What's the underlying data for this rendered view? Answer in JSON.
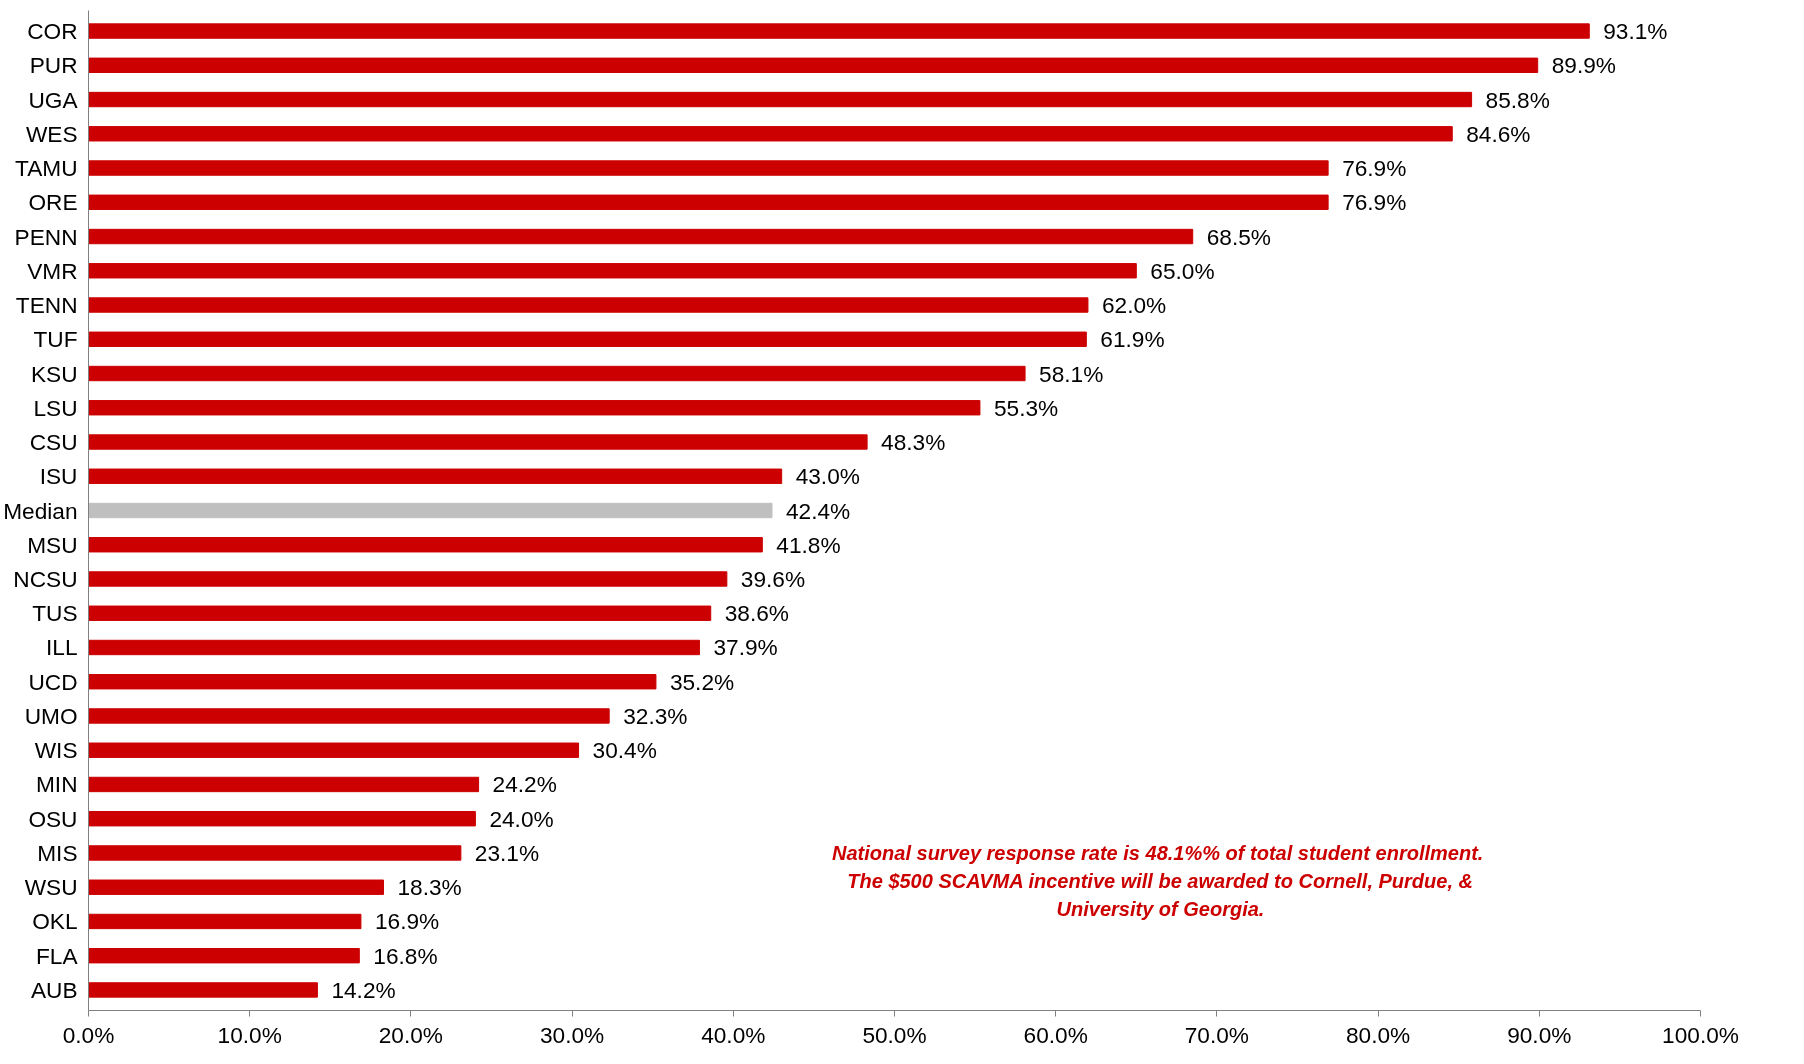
{
  "chart_data": {
    "type": "bar",
    "orientation": "horizontal",
    "categories": [
      "COR",
      "PUR",
      "UGA",
      "WES",
      "TAMU",
      "ORE",
      "PENN",
      "VMR",
      "TENN",
      "TUF",
      "KSU",
      "LSU",
      "CSU",
      "ISU",
      "Median",
      "MSU",
      "NCSU",
      "TUS",
      "ILL",
      "UCD",
      "UMO",
      "WIS",
      "MIN",
      "OSU",
      "MIS",
      "WSU",
      "OKL",
      "FLA",
      "AUB"
    ],
    "values": [
      93.1,
      89.9,
      85.8,
      84.6,
      76.9,
      76.9,
      68.5,
      65.0,
      62.0,
      61.9,
      58.1,
      55.3,
      48.3,
      43.0,
      42.4,
      41.8,
      39.6,
      38.6,
      37.9,
      35.2,
      32.3,
      30.4,
      24.2,
      24.0,
      23.1,
      18.3,
      16.9,
      16.8,
      14.2
    ],
    "colors": [
      "#cc0000",
      "#cc0000",
      "#cc0000",
      "#cc0000",
      "#cc0000",
      "#cc0000",
      "#cc0000",
      "#cc0000",
      "#cc0000",
      "#cc0000",
      "#cc0000",
      "#cc0000",
      "#cc0000",
      "#cc0000",
      "#bfbfbf",
      "#cc0000",
      "#cc0000",
      "#cc0000",
      "#cc0000",
      "#cc0000",
      "#cc0000",
      "#cc0000",
      "#cc0000",
      "#cc0000",
      "#cc0000",
      "#cc0000",
      "#cc0000",
      "#cc0000",
      "#cc0000"
    ],
    "value_labels": [
      "93.1%",
      "89.9%",
      "85.8%",
      "84.6%",
      "76.9%",
      "76.9%",
      "68.5%",
      "65.0%",
      "62.0%",
      "61.9%",
      "58.1%",
      "55.3%",
      "48.3%",
      "43.0%",
      "42.4%",
      "41.8%",
      "39.6%",
      "38.6%",
      "37.9%",
      "35.2%",
      "32.3%",
      "30.4%",
      "24.2%",
      "24.0%",
      "23.1%",
      "18.3%",
      "16.9%",
      "16.8%",
      "14.2%"
    ],
    "xlim": [
      0,
      100
    ],
    "xticks": [
      {
        "value": 0,
        "label": "0.0%"
      },
      {
        "value": 10,
        "label": "10.0%"
      },
      {
        "value": 20,
        "label": "20.0%"
      },
      {
        "value": 30,
        "label": "30.0%"
      },
      {
        "value": 40,
        "label": "40.0%"
      },
      {
        "value": 50,
        "label": "50.0%"
      },
      {
        "value": 60,
        "label": "60.0%"
      },
      {
        "value": 70,
        "label": "70.0%"
      },
      {
        "value": 80,
        "label": "80.0%"
      },
      {
        "value": 90,
        "label": "90.0%"
      },
      {
        "value": 100,
        "label": "100.0%"
      }
    ],
    "grid": false,
    "annotations": [
      "National survey response rate  is 48.1%% of total student enrollment. The $500 SCAVMA incentive will be awarded to Cornell, Purdue, & University of Georgia."
    ]
  }
}
